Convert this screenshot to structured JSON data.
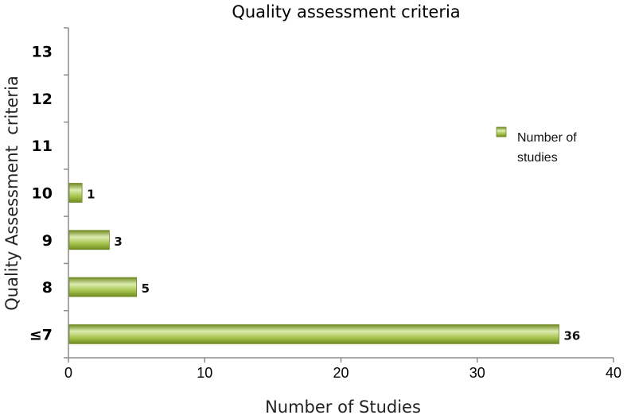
{
  "chart_data": {
    "type": "bar",
    "orientation": "horizontal",
    "title": "Quality assessment criteria",
    "xlabel": "Number of Studies",
    "ylabel": "Quality Assessment  criteria",
    "categories": [
      "≤7",
      "8",
      "9",
      "10",
      "11",
      "12",
      "13"
    ],
    "series": [
      {
        "name": "Number of studies",
        "values": [
          36,
          5,
          3,
          1,
          null,
          null,
          null
        ]
      }
    ],
    "data_labels": [
      "36",
      "5",
      "3",
      "1",
      "",
      "",
      ""
    ],
    "xlim": [
      0,
      40
    ],
    "xticks": [
      "0",
      "10",
      "20",
      "30",
      "40"
    ],
    "grid": false,
    "legend": {
      "position": "right",
      "entries": [
        "Number of",
        "studies"
      ]
    },
    "colors": {
      "bar": "#a4c24a",
      "bar_light": "#dcecb0",
      "bar_dark": "#6f8a22",
      "axis": "#8c8c8c"
    }
  }
}
